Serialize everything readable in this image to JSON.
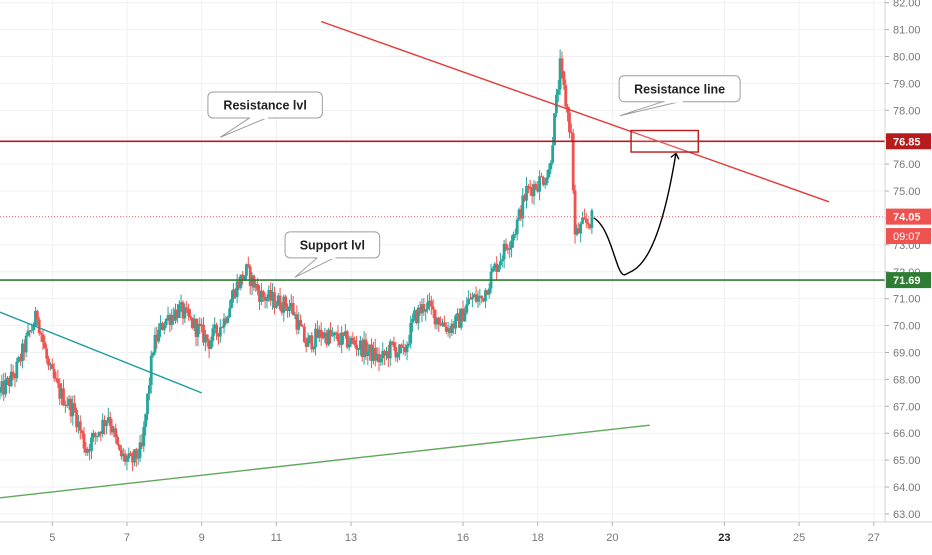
{
  "colors": {
    "up": "#26a69a",
    "down": "#ef5350",
    "resistance": "#b71c1c",
    "support": "#2e7d32",
    "trend_down": "#e53935",
    "trend_up": "#5fa85a",
    "trend_teal": "#1e9aa0",
    "price_line": "#e57373",
    "grid": "#eef0f3",
    "axis_text": "#777777",
    "callout_border": "#9e9e9e"
  },
  "chart_data": {
    "type": "candlestick",
    "title": "",
    "xlabel": "",
    "ylabel": "",
    "ylim": [
      62.7,
      82.1
    ],
    "xlim": [
      3.6,
      27.3
    ],
    "grid": true,
    "y_ticks": [
      "63.00",
      "64.00",
      "65.00",
      "66.00",
      "67.00",
      "68.00",
      "69.00",
      "70.00",
      "71.00",
      "72.00",
      "73.00",
      "74.00",
      "75.00",
      "76.00",
      "77.00",
      "78.00",
      "79.00",
      "80.00",
      "81.00",
      "82.00"
    ],
    "x_ticks": [
      {
        "day": 5,
        "label": "5",
        "bold": false
      },
      {
        "day": 7,
        "label": "7",
        "bold": false
      },
      {
        "day": 9,
        "label": "9",
        "bold": false
      },
      {
        "day": 11,
        "label": "11",
        "bold": false
      },
      {
        "day": 13,
        "label": "13",
        "bold": false
      },
      {
        "day": 16,
        "label": "16",
        "bold": false
      },
      {
        "day": 18,
        "label": "18",
        "bold": false
      },
      {
        "day": 20,
        "label": "20",
        "bold": false
      },
      {
        "day": 23,
        "label": "23",
        "bold": true
      },
      {
        "day": 25,
        "label": "25",
        "bold": false
      },
      {
        "day": 27,
        "label": "27",
        "bold": false
      }
    ],
    "price_path": [
      [
        3.6,
        67.5
      ],
      [
        4.0,
        68.2
      ],
      [
        4.3,
        69.4
      ],
      [
        4.6,
        70.4
      ],
      [
        4.9,
        68.4
      ],
      [
        5.2,
        67.5
      ],
      [
        5.6,
        66.8
      ],
      [
        5.9,
        65.4
      ],
      [
        6.2,
        66.0
      ],
      [
        6.5,
        66.7
      ],
      [
        6.8,
        65.2
      ],
      [
        7.1,
        64.9
      ],
      [
        7.4,
        65.4
      ],
      [
        7.7,
        69.2
      ],
      [
        8.0,
        70.2
      ],
      [
        8.4,
        70.6
      ],
      [
        8.8,
        70.0
      ],
      [
        9.2,
        69.4
      ],
      [
        9.6,
        70.2
      ],
      [
        9.9,
        71.4
      ],
      [
        10.2,
        72.0
      ],
      [
        10.6,
        71.1
      ],
      [
        11.0,
        70.9
      ],
      [
        11.4,
        70.7
      ],
      [
        11.8,
        69.3
      ],
      [
        12.2,
        69.7
      ],
      [
        12.6,
        69.5
      ],
      [
        13.0,
        69.4
      ],
      [
        13.4,
        69.1
      ],
      [
        13.8,
        68.7
      ],
      [
        14.1,
        69.2
      ],
      [
        14.4,
        68.9
      ],
      [
        14.7,
        70.3
      ],
      [
        15.0,
        70.8
      ],
      [
        15.3,
        70.3
      ],
      [
        15.6,
        69.9
      ],
      [
        15.9,
        70.2
      ],
      [
        16.2,
        71.0
      ],
      [
        16.5,
        71.0
      ],
      [
        16.8,
        72.0
      ],
      [
        17.1,
        72.8
      ],
      [
        17.4,
        73.6
      ],
      [
        17.7,
        75.0
      ],
      [
        18.0,
        75.3
      ],
      [
        18.3,
        75.7
      ],
      [
        18.6,
        79.6
      ],
      [
        18.9,
        77.0
      ],
      [
        19.0,
        73.3
      ],
      [
        19.2,
        73.7
      ],
      [
        19.5,
        74.0
      ]
    ],
    "series": [
      {
        "name": "",
        "kind": "horizontal_line",
        "y": 76.85
      },
      {
        "name": "",
        "kind": "horizontal_line",
        "y": 71.69
      },
      {
        "name": "",
        "kind": "trend_line",
        "points": [
          [
            12.2,
            81.3
          ],
          [
            25.8,
            74.6
          ]
        ]
      },
      {
        "name": "",
        "kind": "trend_line",
        "points": [
          [
            3.6,
            63.6
          ],
          [
            21.0,
            66.3
          ]
        ]
      },
      {
        "name": "",
        "kind": "trend_line",
        "points": [
          [
            3.6,
            70.5
          ],
          [
            9.0,
            67.5
          ]
        ]
      },
      {
        "name": "",
        "kind": "projection",
        "points": [
          [
            19.5,
            74.0
          ],
          [
            20.0,
            73.6
          ],
          [
            20.35,
            71.9
          ],
          [
            21.2,
            72.5
          ],
          [
            21.7,
            76.4
          ]
        ]
      }
    ],
    "price_labels": [
      {
        "value": 76.85,
        "label": "76.85",
        "style": "resistance"
      },
      {
        "value": 74.05,
        "label": "74.05",
        "style": "current"
      },
      {
        "value": 71.69,
        "label": "71.69",
        "style": "support"
      }
    ],
    "countdown": {
      "label": "09:07",
      "value": 73.55
    },
    "target_zone": {
      "x": [
        20.5,
        22.3
      ],
      "y": [
        76.45,
        77.25
      ]
    },
    "annotations": [
      {
        "label": "Resistance lvl",
        "anchor": [
          9.5,
          77.0
        ],
        "box_center": [
          10.7,
          78.2
        ]
      },
      {
        "label": "Support lvl",
        "anchor": [
          11.5,
          71.8
        ],
        "box_center": [
          12.5,
          73.0
        ]
      },
      {
        "label": "Resistance line",
        "anchor": [
          20.2,
          77.8
        ],
        "box_center": [
          21.8,
          78.8
        ]
      }
    ]
  }
}
